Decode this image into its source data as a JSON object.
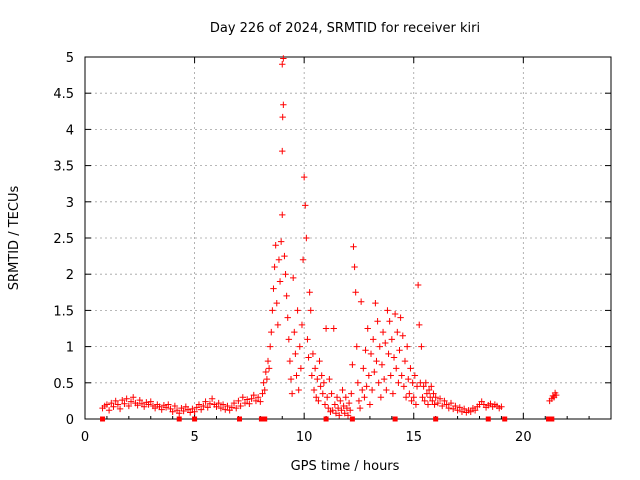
{
  "chart_data": {
    "type": "scatter",
    "title": "Day 226 of 2024, SRMTID for receiver kiri",
    "xlabel": "GPS time / hours",
    "ylabel": "SRMTID / TECUs",
    "xlim": [
      0,
      24
    ],
    "ylim": [
      0,
      5
    ],
    "xticks": [
      0,
      5,
      10,
      15,
      20
    ],
    "xtick_labels": [
      "0",
      "5",
      "10",
      "15",
      "20"
    ],
    "yticks": [
      0,
      0.5,
      1,
      1.5,
      2,
      2.5,
      3,
      3.5,
      4,
      4.5,
      5
    ],
    "ytick_labels": [
      "0",
      "0.5",
      "1",
      "1.5",
      "2",
      "2.5",
      "3",
      "3.5",
      "4",
      "4.5",
      "5"
    ],
    "grid": true,
    "marker": "+",
    "marker_color": "#ff0000",
    "series": [
      {
        "name": "SRMTID",
        "points": [
          [
            0.8,
            0.15
          ],
          [
            0.9,
            0.18
          ],
          [
            1.0,
            0.2
          ],
          [
            1.1,
            0.12
          ],
          [
            1.2,
            0.22
          ],
          [
            1.3,
            0.17
          ],
          [
            1.4,
            0.25
          ],
          [
            1.5,
            0.2
          ],
          [
            1.6,
            0.14
          ],
          [
            1.7,
            0.26
          ],
          [
            1.8,
            0.21
          ],
          [
            1.9,
            0.28
          ],
          [
            2.0,
            0.18
          ],
          [
            2.1,
            0.24
          ],
          [
            2.2,
            0.3
          ],
          [
            2.3,
            0.22
          ],
          [
            2.4,
            0.19
          ],
          [
            2.5,
            0.26
          ],
          [
            2.6,
            0.21
          ],
          [
            2.7,
            0.17
          ],
          [
            2.8,
            0.23
          ],
          [
            2.9,
            0.2
          ],
          [
            3.0,
            0.24
          ],
          [
            3.1,
            0.18
          ],
          [
            3.2,
            0.15
          ],
          [
            3.3,
            0.2
          ],
          [
            3.4,
            0.17
          ],
          [
            3.5,
            0.13
          ],
          [
            3.6,
            0.19
          ],
          [
            3.7,
            0.16
          ],
          [
            3.8,
            0.2
          ],
          [
            3.9,
            0.14
          ],
          [
            4.0,
            0.1
          ],
          [
            4.1,
            0.18
          ],
          [
            4.2,
            0.12
          ],
          [
            4.3,
            0.08
          ],
          [
            4.4,
            0.15
          ],
          [
            4.5,
            0.11
          ],
          [
            4.6,
            0.17
          ],
          [
            4.7,
            0.13
          ],
          [
            4.8,
            0.09
          ],
          [
            4.9,
            0.14
          ],
          [
            5.0,
            0.1
          ],
          [
            5.1,
            0.16
          ],
          [
            5.2,
            0.2
          ],
          [
            5.3,
            0.13
          ],
          [
            5.4,
            0.18
          ],
          [
            5.5,
            0.24
          ],
          [
            5.6,
            0.16
          ],
          [
            5.7,
            0.21
          ],
          [
            5.8,
            0.28
          ],
          [
            5.9,
            0.2
          ],
          [
            6.0,
            0.17
          ],
          [
            6.1,
            0.22
          ],
          [
            6.2,
            0.15
          ],
          [
            6.3,
            0.2
          ],
          [
            6.4,
            0.13
          ],
          [
            6.5,
            0.18
          ],
          [
            6.6,
            0.12
          ],
          [
            6.7,
            0.16
          ],
          [
            6.8,
            0.22
          ],
          [
            6.9,
            0.15
          ],
          [
            7.0,
            0.25
          ],
          [
            7.1,
            0.18
          ],
          [
            7.2,
            0.3
          ],
          [
            7.3,
            0.22
          ],
          [
            7.4,
            0.27
          ],
          [
            7.5,
            0.21
          ],
          [
            7.6,
            0.28
          ],
          [
            7.7,
            0.33
          ],
          [
            7.8,
            0.25
          ],
          [
            7.9,
            0.3
          ],
          [
            8.0,
            0.24
          ],
          [
            8.1,
            0.35
          ],
          [
            8.15,
            0.5
          ],
          [
            8.2,
            0.4
          ],
          [
            8.25,
            0.65
          ],
          [
            8.3,
            0.55
          ],
          [
            8.35,
            0.8
          ],
          [
            8.4,
            0.7
          ],
          [
            8.45,
            1.0
          ],
          [
            8.5,
            1.2
          ],
          [
            8.55,
            1.5
          ],
          [
            8.6,
            1.8
          ],
          [
            8.65,
            2.1
          ],
          [
            8.7,
            2.4
          ],
          [
            8.75,
            1.6
          ],
          [
            8.8,
            1.3
          ],
          [
            8.85,
            2.2
          ],
          [
            8.9,
            1.9
          ],
          [
            8.95,
            2.45
          ],
          [
            9.0,
            3.7
          ],
          [
            9.02,
            4.17
          ],
          [
            9.05,
            4.34
          ],
          [
            9.0,
            4.9
          ],
          [
            9.05,
            4.98
          ],
          [
            9.0,
            2.82
          ],
          [
            9.1,
            2.25
          ],
          [
            9.15,
            2.0
          ],
          [
            9.2,
            1.7
          ],
          [
            9.25,
            1.4
          ],
          [
            9.3,
            1.1
          ],
          [
            9.35,
            0.8
          ],
          [
            9.4,
            0.55
          ],
          [
            9.45,
            0.35
          ],
          [
            9.5,
            1.95
          ],
          [
            9.55,
            1.2
          ],
          [
            9.6,
            0.9
          ],
          [
            9.65,
            0.6
          ],
          [
            9.7,
            1.5
          ],
          [
            9.75,
            0.4
          ],
          [
            9.8,
            1.0
          ],
          [
            9.85,
            0.7
          ],
          [
            9.9,
            1.3
          ],
          [
            9.95,
            2.2
          ],
          [
            10.0,
            3.34
          ],
          [
            10.05,
            2.95
          ],
          [
            10.1,
            2.5
          ],
          [
            10.15,
            1.1
          ],
          [
            10.2,
            0.85
          ],
          [
            10.25,
            1.75
          ],
          [
            10.3,
            1.5
          ],
          [
            10.35,
            0.6
          ],
          [
            10.4,
            0.9
          ],
          [
            10.45,
            0.4
          ],
          [
            10.5,
            0.7
          ],
          [
            10.55,
            0.3
          ],
          [
            10.6,
            0.55
          ],
          [
            10.65,
            0.25
          ],
          [
            10.7,
            0.8
          ],
          [
            10.75,
            0.45
          ],
          [
            10.8,
            0.6
          ],
          [
            10.85,
            0.35
          ],
          [
            10.9,
            0.5
          ],
          [
            10.95,
            0.2
          ],
          [
            11.0,
            1.25
          ],
          [
            11.05,
            0.3
          ],
          [
            11.1,
            0.15
          ],
          [
            11.15,
            0.55
          ],
          [
            11.2,
            0.1
          ],
          [
            11.25,
            0.35
          ],
          [
            11.3,
            0.12
          ],
          [
            11.35,
            1.25
          ],
          [
            11.4,
            0.2
          ],
          [
            11.45,
            0.08
          ],
          [
            11.5,
            0.3
          ],
          [
            11.55,
            0.15
          ],
          [
            11.6,
            0.05
          ],
          [
            11.65,
            0.25
          ],
          [
            11.7,
            0.12
          ],
          [
            11.75,
            0.4
          ],
          [
            11.8,
            0.18
          ],
          [
            11.85,
            0.08
          ],
          [
            11.9,
            0.3
          ],
          [
            11.95,
            0.15
          ],
          [
            12.0,
            0.05
          ],
          [
            12.05,
            0.22
          ],
          [
            12.1,
            0.12
          ],
          [
            12.15,
            0.35
          ],
          [
            12.2,
            0.75
          ],
          [
            12.25,
            2.38
          ],
          [
            12.3,
            2.1
          ],
          [
            12.35,
            1.75
          ],
          [
            12.4,
            1.0
          ],
          [
            12.45,
            0.5
          ],
          [
            12.5,
            0.25
          ],
          [
            12.55,
            0.15
          ],
          [
            12.6,
            1.62
          ],
          [
            12.65,
            0.4
          ],
          [
            12.7,
            0.7
          ],
          [
            12.75,
            0.3
          ],
          [
            12.8,
            0.95
          ],
          [
            12.85,
            0.45
          ],
          [
            12.9,
            1.25
          ],
          [
            12.95,
            0.6
          ],
          [
            13.0,
            0.2
          ],
          [
            13.05,
            0.9
          ],
          [
            13.1,
            0.4
          ],
          [
            13.15,
            1.1
          ],
          [
            13.2,
            0.65
          ],
          [
            13.25,
            1.6
          ],
          [
            13.3,
            0.8
          ],
          [
            13.35,
            1.35
          ],
          [
            13.4,
            0.5
          ],
          [
            13.45,
            1.0
          ],
          [
            13.5,
            0.3
          ],
          [
            13.55,
            0.75
          ],
          [
            13.6,
            1.2
          ],
          [
            13.65,
            0.55
          ],
          [
            13.7,
            1.05
          ],
          [
            13.75,
            0.4
          ],
          [
            13.8,
            1.5
          ],
          [
            13.85,
            0.9
          ],
          [
            13.9,
            1.35
          ],
          [
            13.95,
            0.6
          ],
          [
            14.0,
            1.1
          ],
          [
            14.05,
            0.35
          ],
          [
            14.1,
            0.85
          ],
          [
            14.15,
            1.45
          ],
          [
            14.2,
            0.7
          ],
          [
            14.25,
            1.2
          ],
          [
            14.3,
            0.5
          ],
          [
            14.35,
            0.95
          ],
          [
            14.4,
            1.4
          ],
          [
            14.45,
            0.6
          ],
          [
            14.5,
            1.15
          ],
          [
            14.55,
            0.45
          ],
          [
            14.6,
            0.8
          ],
          [
            14.65,
            0.3
          ],
          [
            14.7,
            1.0
          ],
          [
            14.75,
            0.55
          ],
          [
            14.8,
            0.35
          ],
          [
            14.85,
            0.7
          ],
          [
            14.9,
            0.25
          ],
          [
            14.95,
            0.5
          ],
          [
            15.0,
            0.3
          ],
          [
            15.05,
            0.6
          ],
          [
            15.1,
            0.2
          ],
          [
            15.15,
            0.45
          ],
          [
            15.2,
            1.85
          ],
          [
            15.25,
            1.3
          ],
          [
            15.3,
            0.5
          ],
          [
            15.35,
            1.0
          ],
          [
            15.4,
            0.3
          ],
          [
            15.45,
            0.45
          ],
          [
            15.5,
            0.25
          ],
          [
            15.55,
            0.5
          ],
          [
            15.6,
            0.35
          ],
          [
            15.65,
            0.2
          ],
          [
            15.7,
            0.4
          ],
          [
            15.75,
            0.3
          ],
          [
            15.8,
            0.45
          ],
          [
            15.85,
            0.25
          ],
          [
            15.9,
            0.35
          ],
          [
            15.95,
            0.2
          ],
          [
            16.0,
            0.3
          ],
          [
            16.1,
            0.22
          ],
          [
            16.2,
            0.28
          ],
          [
            16.3,
            0.18
          ],
          [
            16.4,
            0.25
          ],
          [
            16.5,
            0.2
          ],
          [
            16.6,
            0.15
          ],
          [
            16.7,
            0.22
          ],
          [
            16.8,
            0.14
          ],
          [
            16.9,
            0.18
          ],
          [
            17.0,
            0.12
          ],
          [
            17.1,
            0.16
          ],
          [
            17.2,
            0.1
          ],
          [
            17.3,
            0.14
          ],
          [
            17.4,
            0.09
          ],
          [
            17.5,
            0.12
          ],
          [
            17.6,
            0.1
          ],
          [
            17.7,
            0.15
          ],
          [
            17.8,
            0.12
          ],
          [
            17.9,
            0.17
          ],
          [
            18.0,
            0.2
          ],
          [
            18.1,
            0.24
          ],
          [
            18.2,
            0.2
          ],
          [
            18.3,
            0.16
          ],
          [
            18.4,
            0.19
          ],
          [
            18.5,
            0.21
          ],
          [
            18.6,
            0.17
          ],
          [
            18.7,
            0.2
          ],
          [
            18.8,
            0.18
          ],
          [
            18.9,
            0.15
          ],
          [
            19.0,
            0.17
          ],
          [
            21.2,
            0.25
          ],
          [
            21.3,
            0.28
          ],
          [
            21.35,
            0.32
          ],
          [
            21.4,
            0.3
          ],
          [
            21.45,
            0.36
          ],
          [
            21.5,
            0.33
          ]
        ]
      }
    ]
  }
}
